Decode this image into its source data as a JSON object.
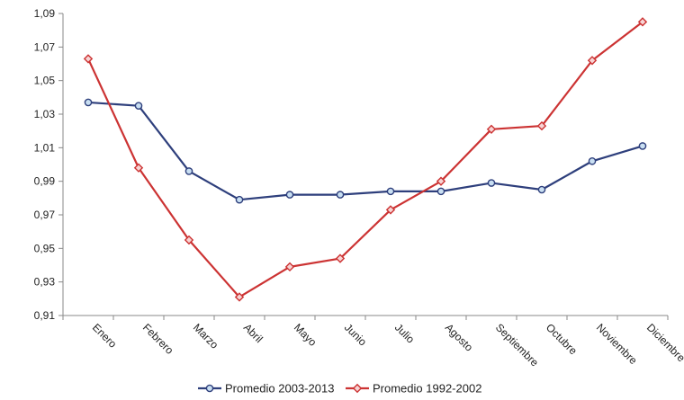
{
  "chart_data": {
    "type": "line",
    "title": "",
    "xlabel": "",
    "ylabel": "",
    "categories": [
      "Enero",
      "Febrero",
      "Marzo",
      "Abril",
      "Mayo",
      "Junio",
      "Julio",
      "Agosto",
      "Septiembre",
      "Octubre",
      "Noviembre",
      "Diciembre"
    ],
    "ylim": [
      0.91,
      1.09
    ],
    "yticks": [
      "0,91",
      "0,93",
      "0,95",
      "0,97",
      "0,99",
      "1,01",
      "1,03",
      "1,05",
      "1,07",
      "1,09"
    ],
    "ytick_values": [
      0.91,
      0.93,
      0.95,
      0.97,
      0.99,
      1.01,
      1.03,
      1.05,
      1.07,
      1.09
    ],
    "grid": false,
    "legend_position": "bottom",
    "series": [
      {
        "name": "Promedio 2003-2013",
        "color": "#2e3f7c",
        "marker_fill": "#c9dff2",
        "marker": "circle",
        "values": [
          1.037,
          1.035,
          0.996,
          0.979,
          0.982,
          0.982,
          0.984,
          0.984,
          0.989,
          0.985,
          1.002,
          1.011
        ]
      },
      {
        "name": "Promedio 1992-2002",
        "color": "#cc3333",
        "marker_fill": "#f7d4d4",
        "marker": "diamond",
        "values": [
          1.063,
          0.998,
          0.955,
          0.921,
          0.939,
          0.944,
          0.973,
          0.99,
          1.021,
          1.023,
          1.062,
          1.085
        ]
      }
    ]
  }
}
